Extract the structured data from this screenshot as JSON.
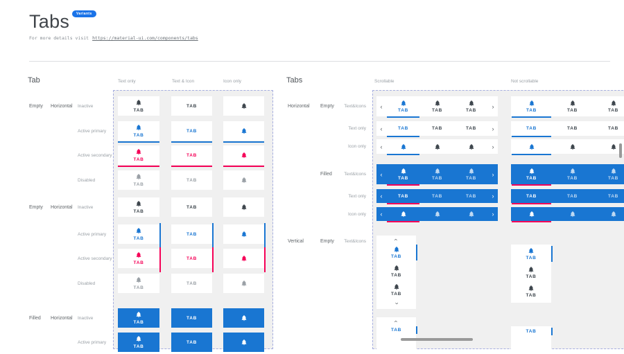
{
  "header": {
    "title": "Tabs",
    "badge": "Variants",
    "details_prefix": "For more details visit",
    "details_link": "https://material-ui.com/components/tabs"
  },
  "tab_label": "TAB",
  "colors": {
    "primary": "#1976D2",
    "secondary": "#F50057",
    "badge": "#1A73E8",
    "inactive": "#3E464D",
    "disabled": "#9AA0A6",
    "canvas": "#F0F0F0",
    "dashed": "#A6AEE0"
  },
  "left_section": {
    "title": "Tab",
    "columns": [
      "Text only",
      "Text & Icon",
      "Icon only"
    ],
    "groups": [
      {
        "variant": "Empty",
        "orientation": "Horizontal",
        "indicator": "bottom",
        "states": [
          "Inactive",
          "Active primary",
          "Active secondary",
          "Disabled"
        ]
      },
      {
        "variant": "Empty",
        "orientation": "Horizontal",
        "indicator": "right",
        "states": [
          "Inactive",
          "Active primary",
          "Active secondary",
          "Disabled"
        ]
      },
      {
        "variant": "Filled",
        "orientation": "Horizontal",
        "indicator": "",
        "states": [
          "Inactive",
          "Active primary"
        ]
      }
    ]
  },
  "right_section": {
    "title": "Tabs",
    "columns": [
      "Scrollable",
      "Not scrollable"
    ],
    "groups": [
      {
        "orientation": "Horizontal",
        "variant": "Empty",
        "rows": [
          "Text&Icons",
          "Text only",
          "Icon only"
        ]
      },
      {
        "orientation": "",
        "variant": "Filled",
        "rows": [
          "Text&Icons",
          "Text only",
          "Icon only"
        ]
      },
      {
        "orientation": "Vertical",
        "variant": "Empty",
        "rows": [
          "Text&Icons",
          ""
        ]
      }
    ]
  }
}
